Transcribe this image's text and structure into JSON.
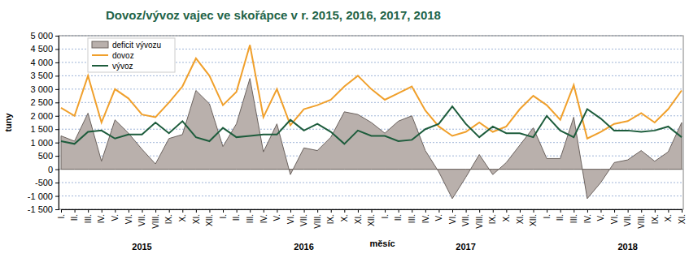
{
  "chart_data": {
    "type": "line",
    "title": "Dovoz/vývoz vajec ve skořápce v r. 2015, 2016, 2017, 2018",
    "x_label": "měsíc",
    "y_label": "tuny",
    "year_labels": [
      "2015",
      "2016",
      "2017",
      "2018"
    ],
    "categories": [
      "I.",
      "II.",
      "III.",
      "IV.",
      "V.",
      "VI.",
      "VII.",
      "VIII.",
      "IX.",
      "X.",
      "XI.",
      "XII.",
      "I.",
      "II.",
      "III.",
      "IV.",
      "V.",
      "VI.",
      "VII.",
      "VIII.",
      "IX.",
      "X.",
      "XI.",
      "XII.",
      "I.",
      "II.",
      "III.",
      "IV.",
      "V.",
      "VI.",
      "VII.",
      "VIII.",
      "IX.",
      "X.",
      "XI.",
      "XII.",
      "I.",
      "II.",
      "III.",
      "IV.",
      "V.",
      "VI.",
      "VII.",
      "VIII.",
      "IX.",
      "X.",
      "XI."
    ],
    "series": [
      {
        "name": "deficit vývozu",
        "type": "area",
        "color": "#b9b0ac",
        "values": [
          1250,
          1050,
          2100,
          300,
          1850,
          1350,
          750,
          200,
          1150,
          1300,
          2950,
          2450,
          850,
          1700,
          3400,
          650,
          1700,
          -200,
          800,
          700,
          1200,
          2150,
          2050,
          1750,
          1350,
          1800,
          2000,
          700,
          -100,
          -1100,
          -300,
          550,
          -200,
          250,
          900,
          1550,
          400,
          400,
          1950,
          -1100,
          -500,
          250,
          350,
          700,
          300,
          650,
          1750
        ]
      },
      {
        "name": "dovoz",
        "type": "line",
        "color": "#f0a02c",
        "values": [
          2300,
          2000,
          3500,
          1750,
          3000,
          2650,
          2050,
          1950,
          2500,
          3100,
          4150,
          3500,
          2400,
          2900,
          4650,
          1950,
          3000,
          1650,
          2250,
          2400,
          2600,
          3100,
          3500,
          3000,
          2600,
          2850,
          3100,
          2200,
          1600,
          1250,
          1400,
          1750,
          1400,
          1600,
          2250,
          2750,
          2400,
          1850,
          3150,
          1150,
          1400,
          1700,
          1800,
          2100,
          1750,
          2250,
          2950
        ]
      },
      {
        "name": "vývoz",
        "type": "line",
        "color": "#1d5c3c",
        "values": [
          1050,
          950,
          1400,
          1450,
          1150,
          1300,
          1300,
          1750,
          1350,
          1800,
          1200,
          1050,
          1550,
          1200,
          1250,
          1300,
          1300,
          1850,
          1450,
          1700,
          1400,
          950,
          1450,
          1250,
          1250,
          1050,
          1100,
          1500,
          1700,
          2350,
          1700,
          1200,
          1600,
          1350,
          1350,
          1200,
          2000,
          1450,
          1200,
          2250,
          1900,
          1450,
          1450,
          1400,
          1450,
          1600,
          1200
        ]
      }
    ],
    "ylim": [
      -1500,
      5000
    ],
    "yticks": [
      {
        "value": 5000,
        "label": "5 000"
      },
      {
        "value": 4500,
        "label": "4 500"
      },
      {
        "value": 4000,
        "label": "4 000"
      },
      {
        "value": 3500,
        "label": "3 500"
      },
      {
        "value": 3000,
        "label": "3 000"
      },
      {
        "value": 2500,
        "label": "2 500"
      },
      {
        "value": 2000,
        "label": "2 000"
      },
      {
        "value": 1500,
        "label": "1 500"
      },
      {
        "value": 1000,
        "label": "1 000"
      },
      500,
      0,
      -500,
      {
        "value": -1000,
        "label": "-1 000"
      },
      {
        "value": -1500,
        "label": "-1 500"
      }
    ],
    "grid": true,
    "legend": "upper left"
  }
}
